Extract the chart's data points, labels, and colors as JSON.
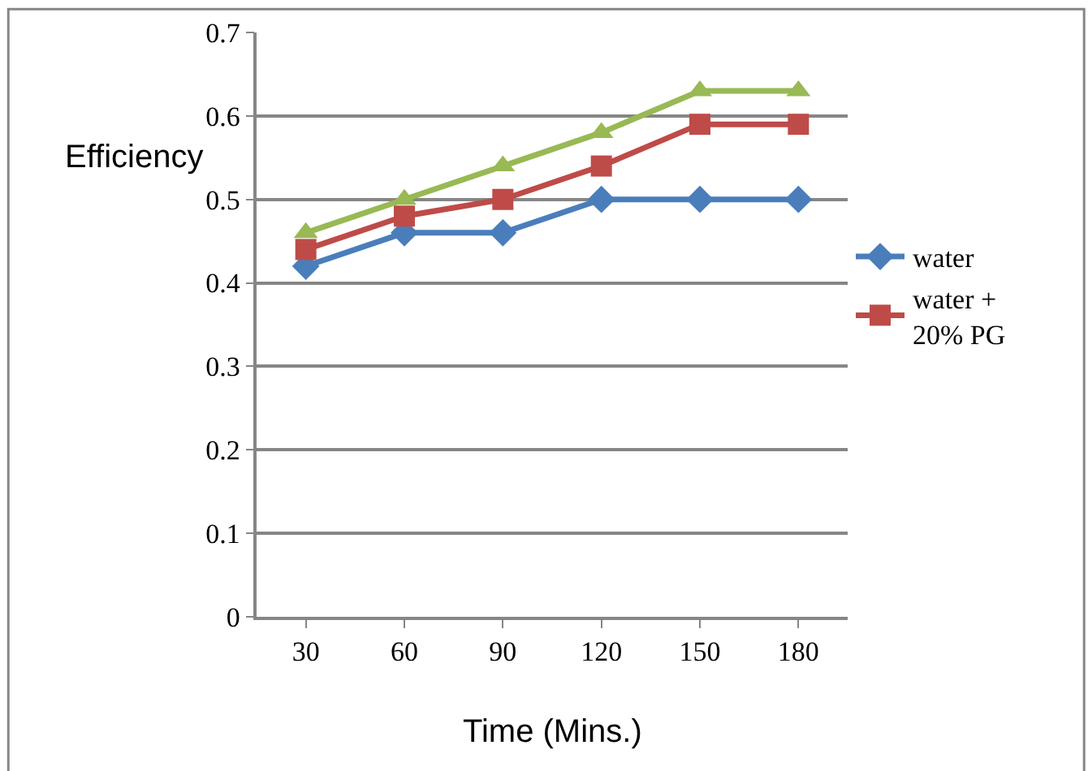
{
  "chart_data": {
    "type": "line",
    "xlabel": "Time (Mins.)",
    "ylabel": "Efficiency",
    "categories": [
      "30",
      "60",
      "90",
      "120",
      "150",
      "180"
    ],
    "series": [
      {
        "name": "water",
        "color": "#4a7ebb",
        "marker": "diamond",
        "values": [
          0.42,
          0.46,
          0.46,
          0.5,
          0.5,
          0.5
        ]
      },
      {
        "name": "water + 20% PG",
        "color": "#be4b48",
        "marker": "square",
        "values": [
          0.44,
          0.48,
          0.5,
          0.54,
          0.59,
          0.59
        ]
      },
      {
        "color": "#98b954",
        "marker": "triangle",
        "values": [
          0.46,
          0.5,
          0.54,
          0.58,
          0.63,
          0.63
        ]
      }
    ],
    "ylim": [
      0,
      0.7
    ],
    "yticks": [
      0,
      0.1,
      0.2,
      0.3,
      0.4,
      0.5,
      0.6,
      0.7
    ],
    "grid": "y",
    "legend": "right",
    "line_style": "solid"
  }
}
